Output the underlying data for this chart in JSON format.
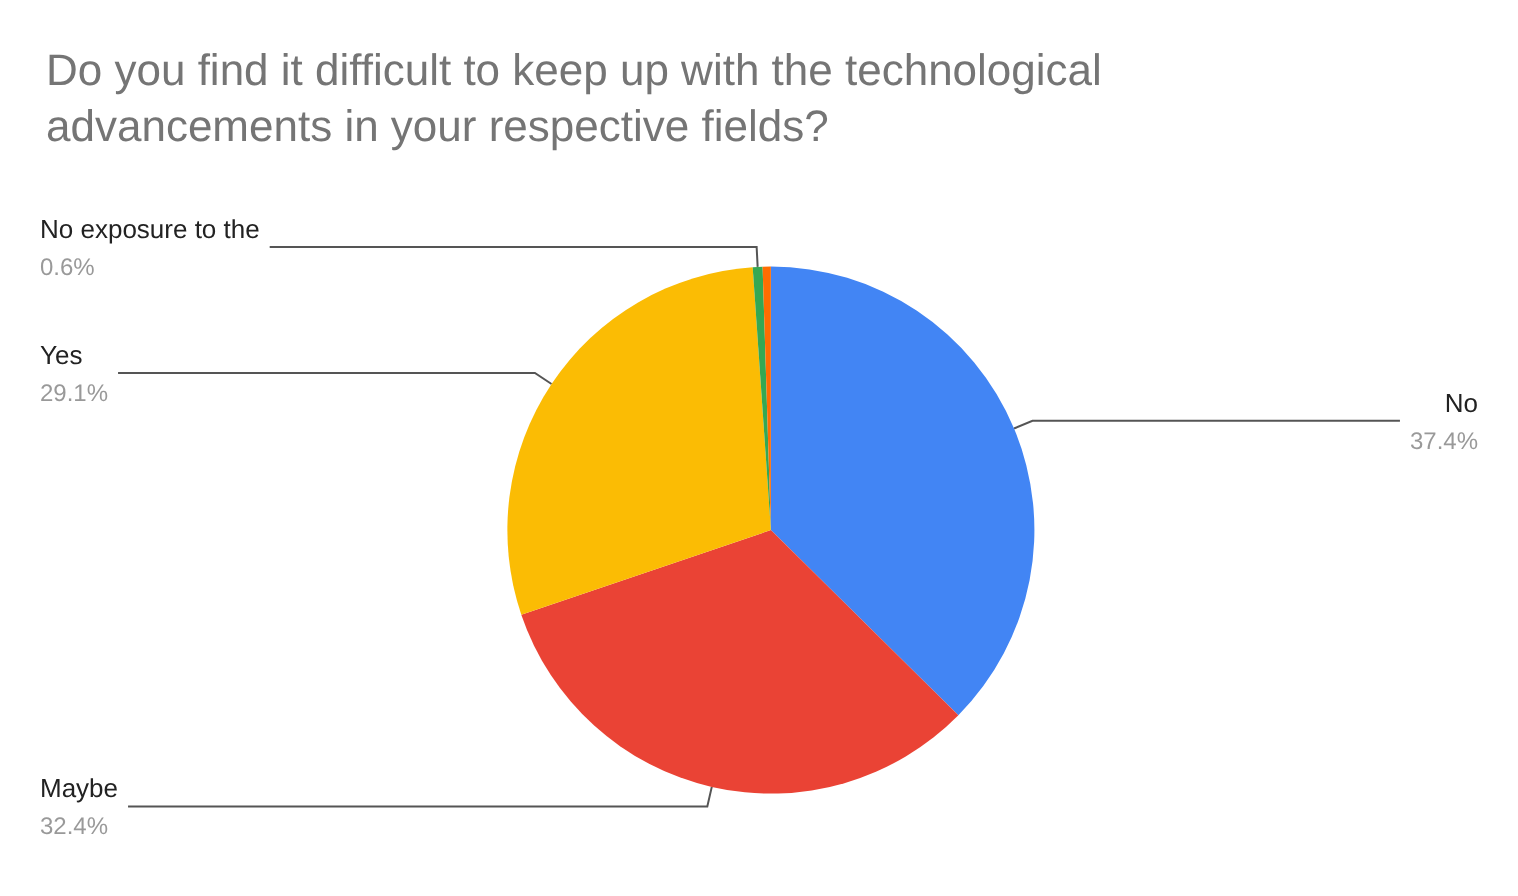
{
  "chart_data": {
    "type": "pie",
    "title": "Do you find it difficult to keep up with the technological advancements in your respective fields?",
    "categories": [
      "No",
      "Maybe",
      "Yes",
      "No exposure to the",
      null
    ],
    "values": [
      37.4,
      32.4,
      29.1,
      0.6,
      0.5
    ],
    "colors": [
      "#4285f4",
      "#ea4335",
      "#fbbc04",
      "#34a853",
      "#ff6d01"
    ],
    "value_labels": [
      "37.4%",
      "32.4%",
      "29.1%",
      "0.6%",
      null
    ],
    "legend": false
  }
}
